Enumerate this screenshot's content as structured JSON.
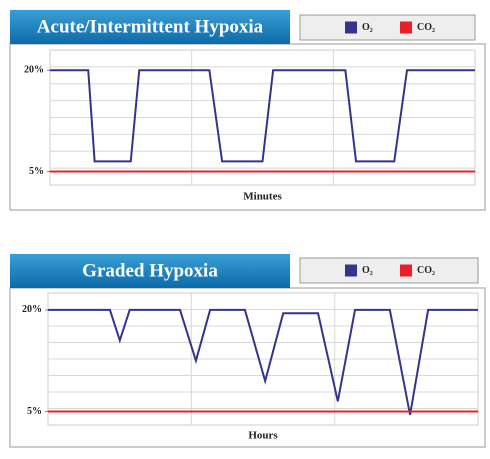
{
  "chart_data": [
    {
      "type": "line",
      "title": "Acute/Intermittent Hypoxia",
      "x_label": "Minutes",
      "xlim": [
        0,
        100
      ],
      "ylim": [
        3,
        23
      ],
      "yticks": [
        {
          "value": 20,
          "label": "20%"
        },
        {
          "value": 5,
          "label": "5%"
        }
      ],
      "series": [
        {
          "name": "O₂",
          "color": "#34348f",
          "x": [
            0,
            9,
            10.5,
            19,
            21,
            37.5,
            40.5,
            50,
            52.5,
            69.5,
            72,
            81,
            84,
            100
          ],
          "values": [
            20,
            20,
            6.5,
            6.5,
            20,
            20,
            6.5,
            6.5,
            20,
            20,
            6.5,
            6.5,
            20,
            20
          ]
        },
        {
          "name": "CO₂",
          "color": "#e8202a",
          "x": [
            0,
            100
          ],
          "values": [
            5,
            5
          ]
        }
      ]
    },
    {
      "type": "line",
      "title": "Graded Hypoxia",
      "x_label": "Hours",
      "xlim": [
        0,
        100
      ],
      "ylim": [
        3,
        22.5
      ],
      "yticks": [
        {
          "value": 20,
          "label": "20%"
        },
        {
          "value": 5,
          "label": "5%"
        }
      ],
      "series": [
        {
          "name": "O₂",
          "color": "#34348f",
          "x": [
            0,
            14.4,
            16.7,
            19,
            30.7,
            34.4,
            37.7,
            45.8,
            50.5,
            54.7,
            62.8,
            67.4,
            71.4,
            79.5,
            84.2,
            88.4,
            100
          ],
          "values": [
            20,
            20,
            15.5,
            20,
            20,
            12.5,
            20,
            20,
            9.5,
            19.5,
            19.5,
            6.5,
            20,
            20,
            4.5,
            20,
            20
          ]
        },
        {
          "name": "CO₂",
          "color": "#e8202a",
          "x": [
            0,
            100
          ],
          "values": [
            5,
            5
          ]
        }
      ]
    }
  ]
}
